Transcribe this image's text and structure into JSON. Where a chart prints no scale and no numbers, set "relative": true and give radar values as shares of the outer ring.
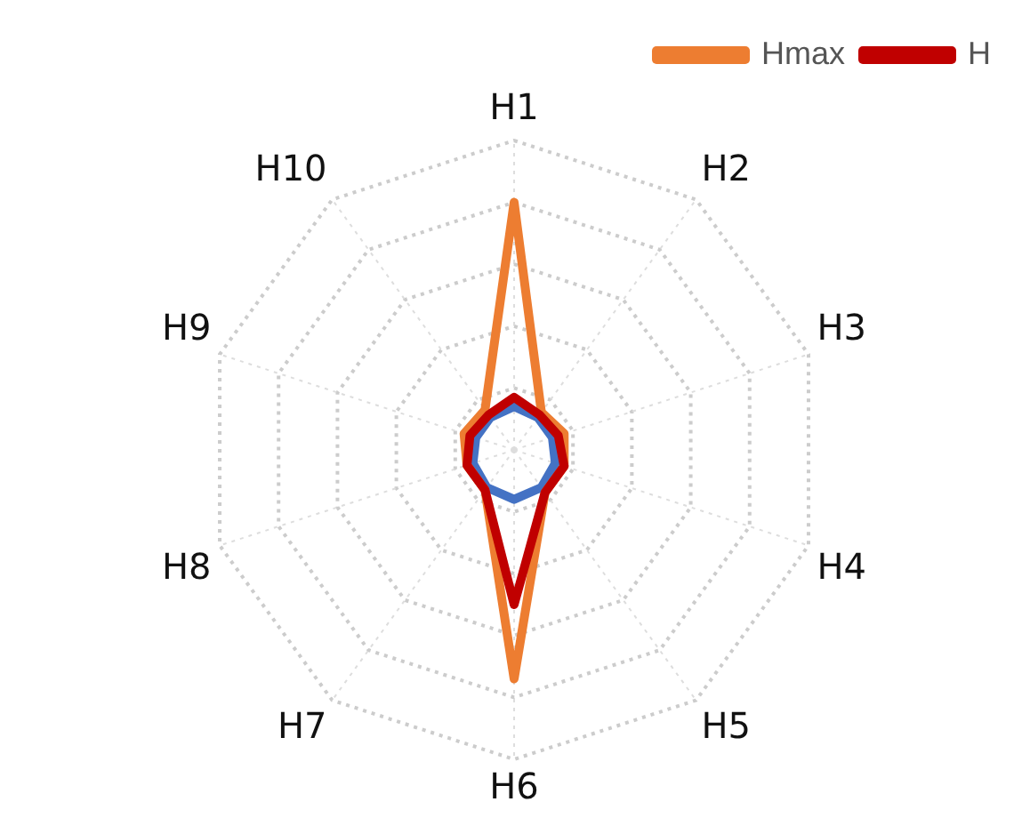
{
  "chart_data": {
    "type": "radar",
    "relative": true,
    "categories": [
      "H1",
      "H2",
      "H3",
      "H4",
      "H5",
      "H6",
      "H7",
      "H8",
      "H9",
      "H10"
    ],
    "series": [
      {
        "color": "#4472c4",
        "values": [
          0.14,
          0.13,
          0.13,
          0.14,
          0.15,
          0.16,
          0.15,
          0.14,
          0.13,
          0.13
        ]
      },
      {
        "name": "Hmax",
        "color": "#ed7d31",
        "values": [
          0.8,
          0.15,
          0.17,
          0.17,
          0.17,
          0.74,
          0.16,
          0.16,
          0.17,
          0.16
        ]
      },
      {
        "name": "H",
        "color": "#c00000",
        "values": [
          0.17,
          0.14,
          0.15,
          0.17,
          0.17,
          0.5,
          0.16,
          0.16,
          0.15,
          0.14
        ]
      }
    ],
    "legend": "top right",
    "marker": "none",
    "grid": true
  }
}
